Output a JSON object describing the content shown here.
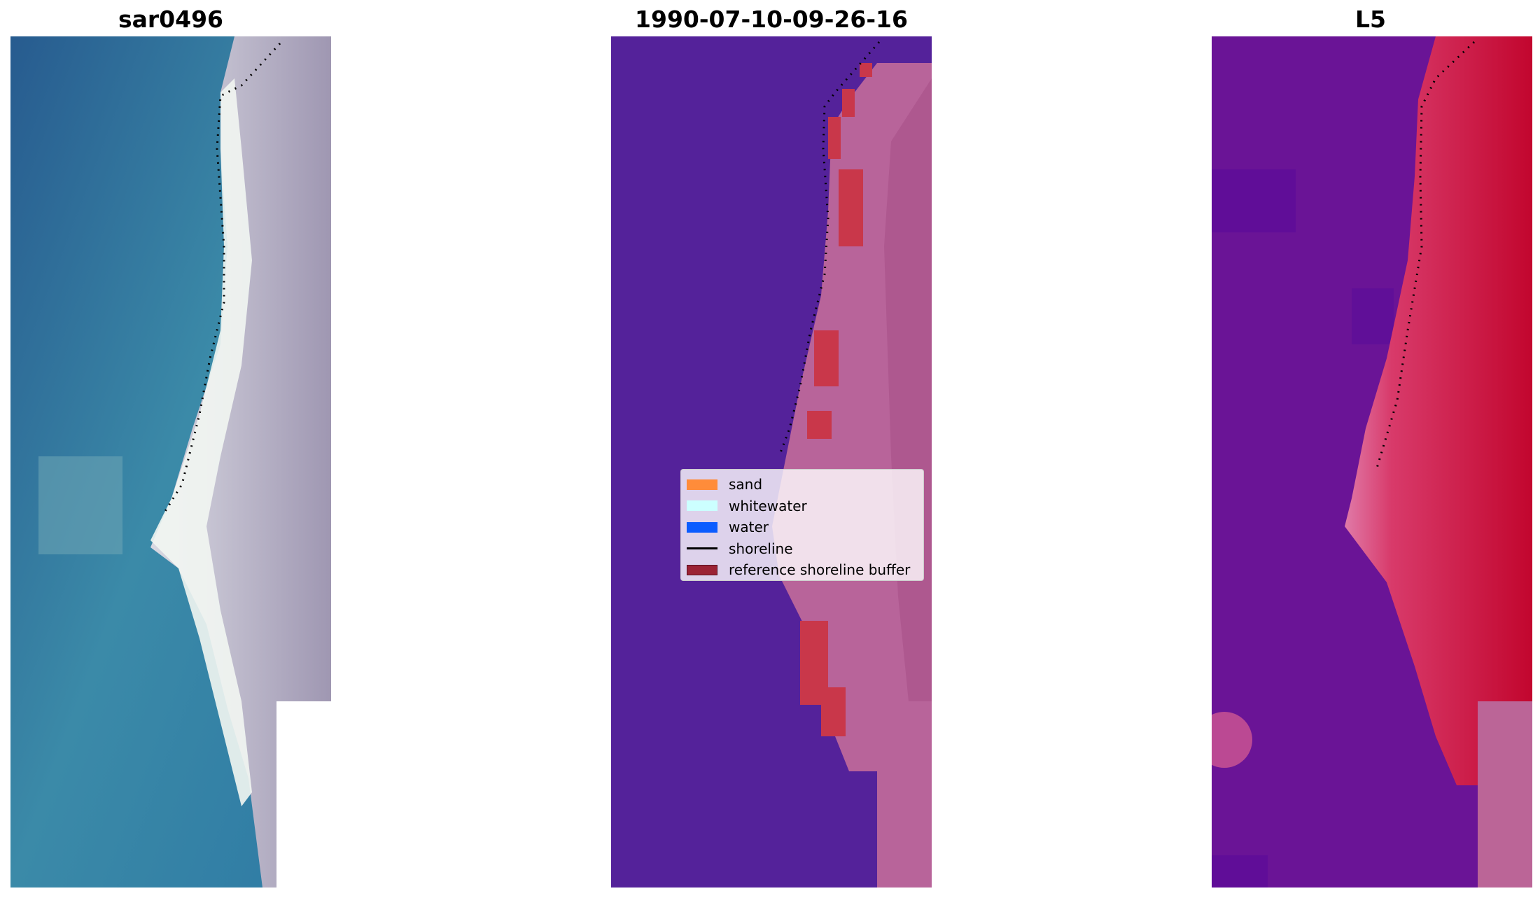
{
  "titles": {
    "left": "sar0496",
    "middle": "1990-07-10-09-26-16",
    "right": "L5"
  },
  "legend": {
    "items": [
      {
        "label": "sand",
        "color": "#ff8c3a",
        "kind": "patch"
      },
      {
        "label": "whitewater",
        "color": "#ccffff",
        "kind": "patch"
      },
      {
        "label": "water",
        "color": "#0b5cff",
        "kind": "patch"
      },
      {
        "label": "shoreline",
        "color": "#000000",
        "kind": "line"
      },
      {
        "label": "reference shoreline buffer",
        "color": "#9b2335",
        "kind": "patch"
      }
    ]
  },
  "colors": {
    "water_rgb": "#2f7aa0",
    "white_surf": "#f2f6f2",
    "land_rgb": "#a79fb6",
    "class_bg": "#54229a",
    "class_land": "#b8649a",
    "buffer": "#c9374a",
    "index_water": "#6a1496",
    "index_land": "#c2062e"
  }
}
